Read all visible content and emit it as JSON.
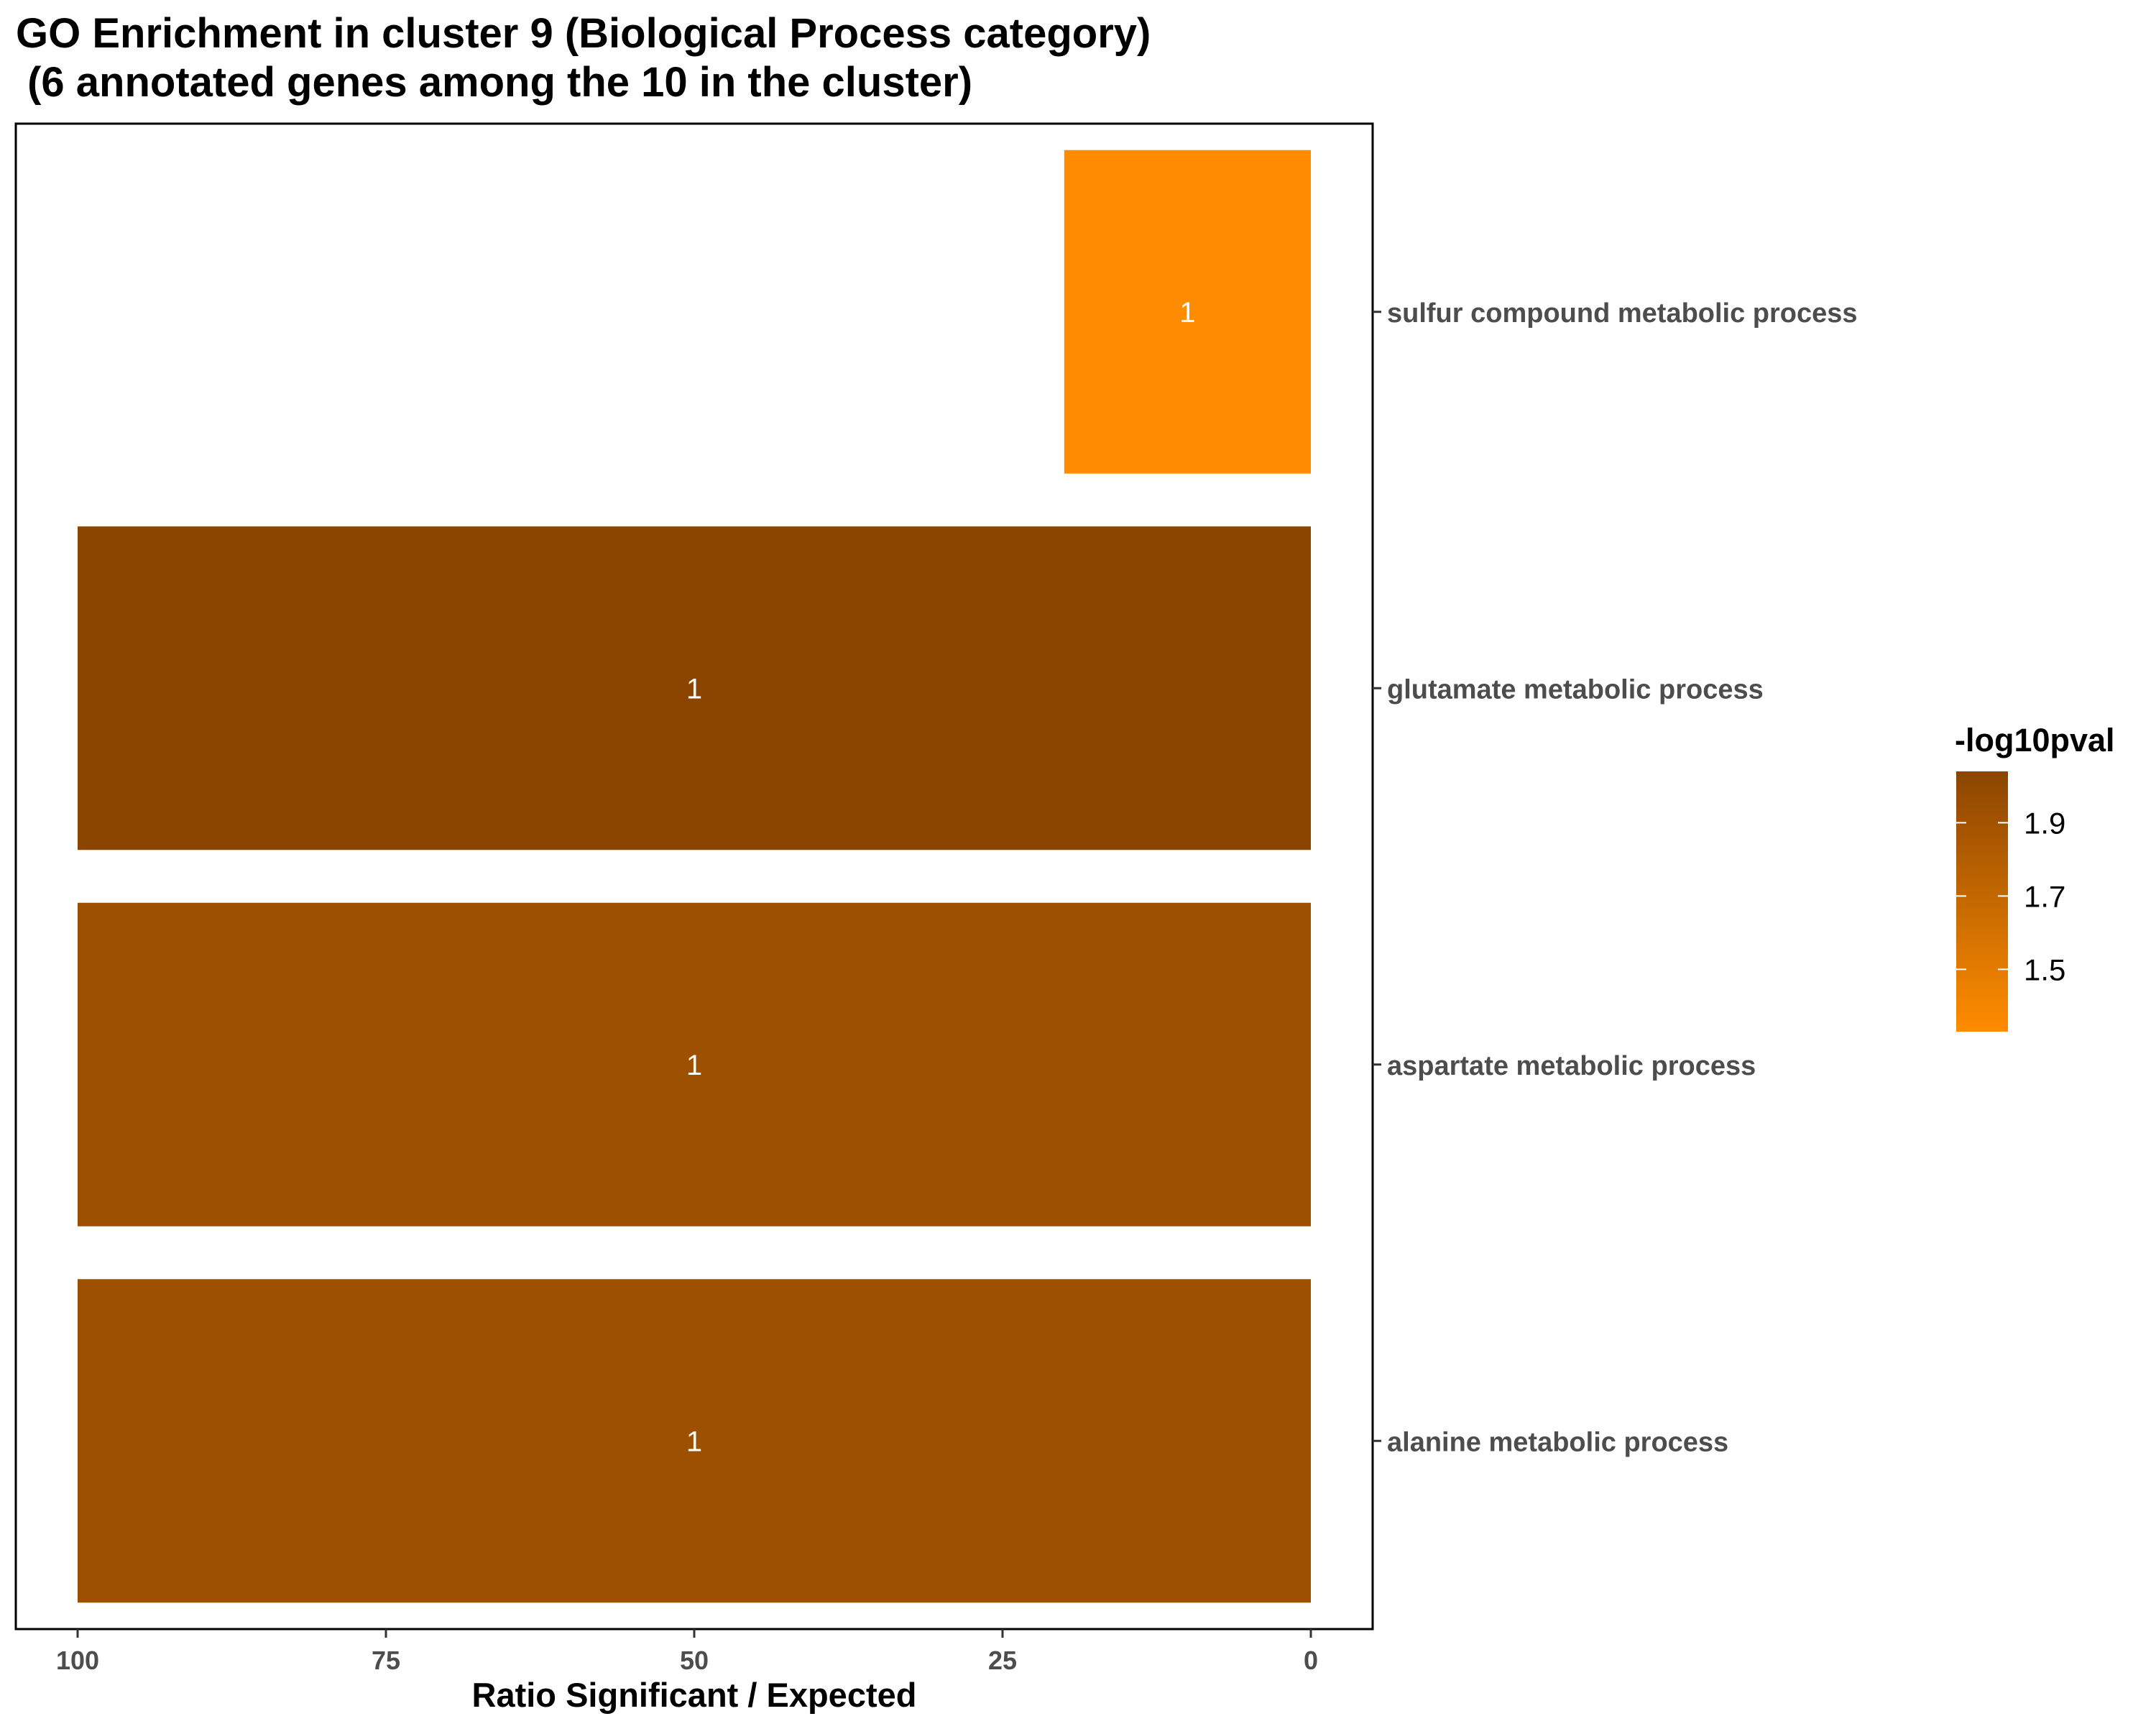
{
  "chart_data": {
    "type": "bar",
    "orientation": "horizontal",
    "title": "GO Enrichment in cluster 9 (Biological Process category)",
    "subtitle": " (6 annotated genes among the 10 in the cluster)",
    "xlabel": "Ratio Significant / Expected",
    "ylabel": "",
    "x_reversed": true,
    "xlim": [
      0,
      100
    ],
    "x_ticks": [
      "100",
      "75",
      "50",
      "25",
      "0"
    ],
    "categories": [
      "sulfur compound metabolic process",
      "glutamate metabolic process",
      "aspartate metabolic process",
      "alanine metabolic process"
    ],
    "values": [
      20,
      100,
      100,
      100
    ],
    "bar_labels": [
      "1",
      "1",
      "1",
      "1"
    ],
    "neg_log10_pval": [
      1.35,
      2.02,
      1.95,
      1.95
    ],
    "bar_colors": [
      "#FF8C00",
      "#8B4500",
      "#9C5000",
      "#9C5000"
    ],
    "grid": false,
    "legend": {
      "title": "-log10pval",
      "position": "right",
      "ticks": [
        "1.9",
        "1.7",
        "1.5"
      ],
      "tick_values": [
        1.9,
        1.7,
        1.5
      ],
      "range": [
        1.33,
        2.04
      ],
      "color_low": "#FF8C00",
      "color_high": "#8B4500"
    }
  }
}
